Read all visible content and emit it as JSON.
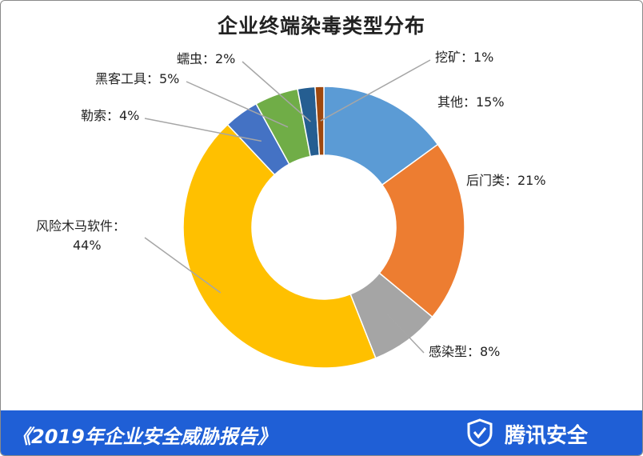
{
  "chart_data": {
    "type": "pie",
    "title": "企业终端染毒类型分布",
    "slices": [
      {
        "name": "其他",
        "value": 15,
        "label": "其他：15%",
        "color": "#5b9bd5"
      },
      {
        "name": "后门类",
        "value": 21,
        "label": "后门类：21%",
        "color": "#ed7d31"
      },
      {
        "name": "感染型",
        "value": 8,
        "label": "感染型：8%",
        "color": "#a5a5a5"
      },
      {
        "name": "风险木马软件",
        "value": 44,
        "label": "风险木马软件：\n44%",
        "color": "#ffc000"
      },
      {
        "name": "勒索",
        "value": 4,
        "label": "勒索：4%",
        "color": "#4472c4"
      },
      {
        "name": "黑客工具",
        "value": 5,
        "label": "黑客工具：5%",
        "color": "#70ad47"
      },
      {
        "name": "蠕虫",
        "value": 2,
        "label": "蠕虫：2%",
        "color": "#255e91"
      },
      {
        "name": "挖矿",
        "value": 1,
        "label": "挖矿：1%",
        "color": "#9e480e"
      }
    ]
  },
  "footer": {
    "report": "《2019年企业安全威胁报告》",
    "brand": "腾讯安全"
  }
}
